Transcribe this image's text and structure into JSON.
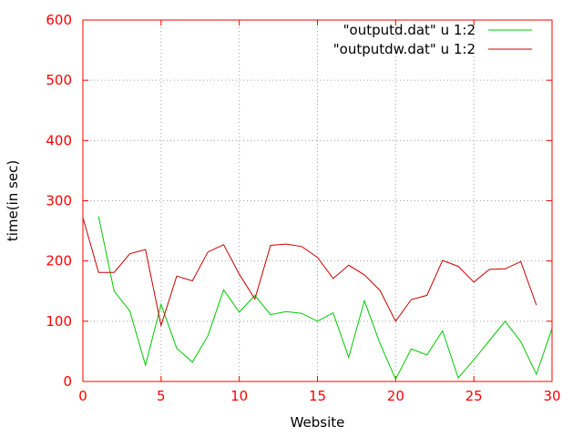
{
  "chart_data": {
    "type": "line",
    "title": "",
    "xlabel": "Website",
    "ylabel": "time(in sec)",
    "xlim": [
      0,
      30
    ],
    "ylim": [
      0,
      600
    ],
    "xticks": [
      0,
      5,
      10,
      15,
      20,
      25,
      30
    ],
    "yticks": [
      0,
      100,
      200,
      300,
      400,
      500,
      600
    ],
    "grid": true,
    "legend_position": "top-right",
    "axis_color": "#ff0000",
    "series": [
      {
        "name": "\"outputd.dat\" u 1:2",
        "color": "#00c800",
        "x": [
          1,
          2,
          3,
          4,
          5,
          6,
          7,
          8,
          9,
          10,
          11,
          12,
          13,
          14,
          15,
          16,
          17,
          18,
          19,
          20,
          21,
          22,
          23,
          24,
          25,
          26,
          27,
          28,
          29,
          30
        ],
        "y": [
          274,
          150,
          117,
          27,
          128,
          55,
          32,
          76,
          152,
          115,
          143,
          111,
          116,
          113,
          100,
          114,
          40,
          134,
          63,
          4,
          54,
          44,
          84,
          6,
          36,
          68,
          100,
          66,
          12,
          88
        ]
      },
      {
        "name": "\"outputdw.dat\" u 1:2",
        "color": "#c80000",
        "x": [
          0,
          1,
          2,
          3,
          4,
          5,
          6,
          7,
          8,
          9,
          10,
          11,
          12,
          13,
          14,
          15,
          16,
          17,
          18,
          19,
          20,
          21,
          22,
          23,
          24,
          25,
          26,
          27,
          28,
          29
        ],
        "y": [
          272,
          181,
          181,
          212,
          219,
          93,
          175,
          167,
          215,
          227,
          178,
          137,
          226,
          228,
          224,
          206,
          171,
          193,
          177,
          151,
          100,
          136,
          143,
          201,
          191,
          165,
          186,
          187,
          199,
          127
        ]
      }
    ]
  }
}
